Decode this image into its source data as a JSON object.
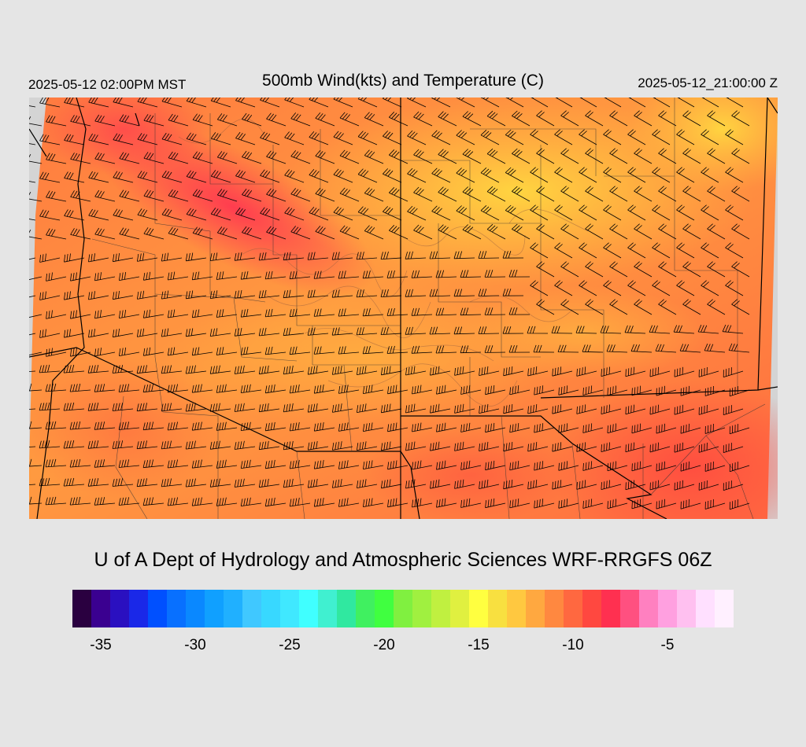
{
  "header": {
    "local_time": "2025-05-12 02:00PM MST",
    "title": "500mb Wind(kts) and Temperature (C)",
    "valid_time": "2025-05-12_21:00:00 Z"
  },
  "credit": "U of A Dept of Hydrology and Atmospheric Sciences WRF-RRGFS 06Z",
  "colorbar": {
    "min": -36,
    "max": -1,
    "step": 1,
    "colors": [
      "#2a0040",
      "#3a0090",
      "#2a10c0",
      "#1a28e8",
      "#0050ff",
      "#0870ff",
      "#0a88ff",
      "#10a0ff",
      "#20b0ff",
      "#40c8ff",
      "#38d8ff",
      "#40e8ff",
      "#40ffff",
      "#40f0d0",
      "#30e8a0",
      "#40f060",
      "#40ff40",
      "#80f040",
      "#a0f040",
      "#c0f040",
      "#e0f040",
      "#ffff40",
      "#f8e040",
      "#ffc840",
      "#ffa840",
      "#ff8840",
      "#ff6840",
      "#ff4840",
      "#ff3050",
      "#ff5080",
      "#ff80c0",
      "#ffa0e0",
      "#ffc0f0",
      "#ffe0ff",
      "#fff0ff"
    ],
    "tick_values": [
      -35,
      -30,
      -25,
      -20,
      -15,
      -10,
      -5
    ],
    "tick_labels": [
      "-35",
      "-30",
      "-25",
      "-20",
      "-15",
      "-10",
      "-5"
    ]
  }
}
